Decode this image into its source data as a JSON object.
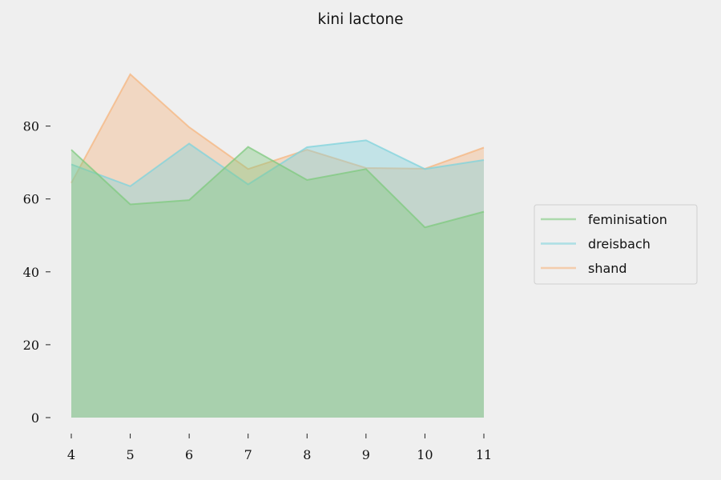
{
  "chart_data": {
    "type": "area",
    "title": "kini lactone",
    "xlabel": "",
    "ylabel": "",
    "x": [
      4,
      5,
      6,
      7,
      8,
      9,
      10,
      11
    ],
    "xlim": [
      4,
      11
    ],
    "ylim": [
      0,
      100
    ],
    "yticks": [
      0,
      20,
      40,
      60,
      80
    ],
    "grid": false,
    "legend_position": "right",
    "series": [
      {
        "name": "feminisation",
        "color": "#7fc97f",
        "values": [
          73.5,
          58.5,
          59.7,
          74.3,
          65.2,
          68.2,
          52.2,
          56.5
        ]
      },
      {
        "name": "dreisbach",
        "color": "#7fd3dc",
        "values": [
          69.5,
          63.5,
          75.2,
          64.0,
          74.2,
          76.1,
          68.2,
          70.7
        ]
      },
      {
        "name": "shand",
        "color": "#f5b57f",
        "values": [
          64.4,
          94.2,
          79.7,
          68.2,
          73.5,
          68.5,
          68.3,
          74.1
        ]
      }
    ]
  }
}
